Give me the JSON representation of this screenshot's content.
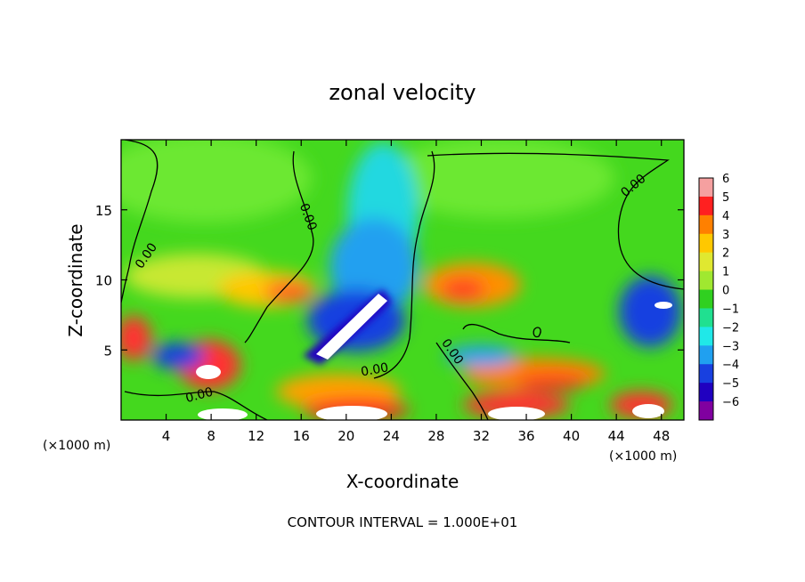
{
  "chart_data": {
    "type": "heatmap",
    "title": "zonal velocity",
    "xlabel": "X-coordinate",
    "ylabel": "Z-coordinate",
    "x_unit_left": "(×1000 m)",
    "x_unit_right": "(×1000 m)",
    "footer": "CONTOUR INTERVAL = 1.000E+01",
    "xlim": [
      0,
      50
    ],
    "ylim": [
      0,
      20
    ],
    "x_ticks": [
      "4",
      "8",
      "12",
      "16",
      "20",
      "24",
      "28",
      "32",
      "36",
      "40",
      "44",
      "48"
    ],
    "x_tick_values": [
      4,
      8,
      12,
      16,
      20,
      24,
      28,
      32,
      36,
      40,
      44,
      48
    ],
    "y_ticks": [
      "5",
      "10",
      "15"
    ],
    "y_tick_values": [
      5,
      10,
      15
    ],
    "contour_label": "0.00",
    "colorbar": {
      "labels": [
        "6",
        "5",
        "4",
        "3",
        "2",
        "1",
        "0",
        "−1",
        "−2",
        "−3",
        "−4",
        "−5",
        "−6"
      ],
      "colors": [
        "#f5a0a0",
        "#ff2020",
        "#ff8000",
        "#ffc800",
        "#e0e830",
        "#a0e830",
        "#30d020",
        "#20e090",
        "#20e8e8",
        "#20a0f0",
        "#1840e0",
        "#2000c0",
        "#8000a0"
      ]
    }
  }
}
